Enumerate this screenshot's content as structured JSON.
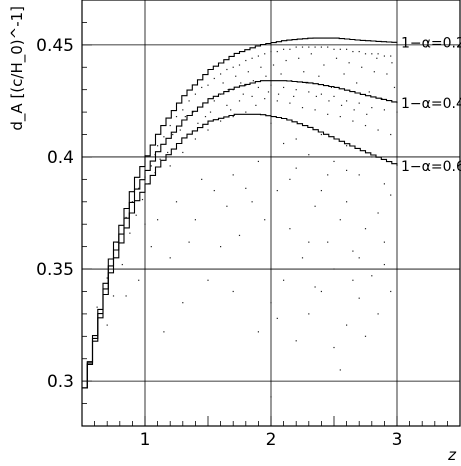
{
  "chart_data": {
    "type": "scatter",
    "title": "",
    "xlabel": "z",
    "ylabel": "d_A [(c/H_0)^-1]",
    "xlim": [
      0.5,
      3.5
    ],
    "ylim": [
      0.28,
      0.47
    ],
    "grid": true,
    "x_ticks": [
      {
        "value": 1,
        "label": "1"
      },
      {
        "value": 2,
        "label": "2"
      },
      {
        "value": 3,
        "label": "3"
      }
    ],
    "y_ticks": [
      {
        "value": 0.3,
        "label": "0.3"
      },
      {
        "value": 0.35,
        "label": "0.35"
      },
      {
        "value": 0.4,
        "label": "0.4"
      },
      {
        "value": 0.45,
        "label": "0.45"
      }
    ],
    "series": [
      {
        "name": "1−α=0.2",
        "x": [
          0.5,
          0.7,
          0.9,
          1.1,
          1.3,
          1.5,
          1.7,
          1.9,
          2.1,
          2.3,
          2.5,
          2.7,
          3.0
        ],
        "y": [
          0.297,
          0.353,
          0.389,
          0.412,
          0.428,
          0.439,
          0.446,
          0.45,
          0.452,
          0.453,
          0.453,
          0.452,
          0.451
        ]
      },
      {
        "name": "1−α=0.4",
        "x": [
          0.5,
          0.7,
          0.9,
          1.1,
          1.3,
          1.5,
          1.7,
          1.9,
          2.1,
          2.3,
          2.5,
          2.7,
          3.0
        ],
        "y": [
          0.297,
          0.35,
          0.384,
          0.404,
          0.417,
          0.426,
          0.431,
          0.434,
          0.434,
          0.433,
          0.431,
          0.428,
          0.424
        ]
      },
      {
        "name": "1−α=0.6",
        "x": [
          0.5,
          0.7,
          0.9,
          1.1,
          1.3,
          1.5,
          1.7,
          1.9,
          2.1,
          2.3,
          2.5,
          2.7,
          3.0
        ],
        "y": [
          0.297,
          0.347,
          0.379,
          0.397,
          0.409,
          0.416,
          0.419,
          0.419,
          0.417,
          0.413,
          0.408,
          0.403,
          0.396
        ]
      }
    ],
    "scatter_points": [
      [
        0.62,
        0.333
      ],
      [
        0.7,
        0.346
      ],
      [
        0.78,
        0.362
      ],
      [
        0.85,
        0.373
      ],
      [
        0.9,
        0.38
      ],
      [
        0.95,
        0.386
      ],
      [
        1.0,
        0.391
      ],
      [
        1.05,
        0.396
      ],
      [
        0.75,
        0.338
      ],
      [
        0.82,
        0.352
      ],
      [
        0.88,
        0.366
      ],
      [
        0.93,
        0.374
      ],
      [
        0.98,
        0.381
      ],
      [
        1.03,
        0.388
      ],
      [
        1.08,
        0.393
      ],
      [
        1.1,
        0.405
      ],
      [
        1.15,
        0.409
      ],
      [
        1.2,
        0.414
      ],
      [
        1.25,
        0.418
      ],
      [
        1.3,
        0.421
      ],
      [
        1.35,
        0.425
      ],
      [
        1.4,
        0.428
      ],
      [
        1.45,
        0.431
      ],
      [
        1.2,
        0.396
      ],
      [
        1.3,
        0.402
      ],
      [
        1.4,
        0.408
      ],
      [
        1.5,
        0.412
      ],
      [
        1.6,
        0.416
      ],
      [
        1.7,
        0.418
      ],
      [
        1.8,
        0.42
      ],
      [
        1.5,
        0.432
      ],
      [
        1.55,
        0.435
      ],
      [
        1.6,
        0.437
      ],
      [
        1.65,
        0.439
      ],
      [
        1.7,
        0.44
      ],
      [
        1.75,
        0.441
      ],
      [
        1.8,
        0.443
      ],
      [
        1.85,
        0.444
      ],
      [
        1.9,
        0.445
      ],
      [
        1.95,
        0.446
      ],
      [
        2.0,
        0.447
      ],
      [
        2.05,
        0.447
      ],
      [
        2.1,
        0.448
      ],
      [
        2.15,
        0.448
      ],
      [
        2.2,
        0.449
      ],
      [
        2.25,
        0.449
      ],
      [
        2.3,
        0.449
      ],
      [
        2.35,
        0.449
      ],
      [
        2.4,
        0.449
      ],
      [
        2.45,
        0.449
      ],
      [
        2.5,
        0.448
      ],
      [
        2.55,
        0.448
      ],
      [
        2.6,
        0.448
      ],
      [
        2.65,
        0.447
      ],
      [
        2.7,
        0.447
      ],
      [
        2.75,
        0.446
      ],
      [
        2.8,
        0.446
      ],
      [
        2.85,
        0.446
      ],
      [
        2.9,
        0.445
      ],
      [
        2.95,
        0.445
      ],
      [
        1.6,
        0.428
      ],
      [
        1.7,
        0.43
      ],
      [
        1.8,
        0.432
      ],
      [
        1.9,
        0.431
      ],
      [
        2.0,
        0.432
      ],
      [
        2.1,
        0.431
      ],
      [
        2.2,
        0.43
      ],
      [
        2.3,
        0.429
      ],
      [
        2.4,
        0.428
      ],
      [
        2.5,
        0.427
      ],
      [
        2.6,
        0.425
      ],
      [
        2.7,
        0.424
      ],
      [
        2.8,
        0.422
      ],
      [
        2.9,
        0.421
      ],
      [
        3.0,
        0.42
      ],
      [
        1.65,
        0.423
      ],
      [
        1.75,
        0.425
      ],
      [
        1.85,
        0.427
      ],
      [
        1.95,
        0.426
      ],
      [
        2.05,
        0.425
      ],
      [
        2.15,
        0.424
      ],
      [
        2.25,
        0.422
      ],
      [
        2.35,
        0.421
      ],
      [
        2.45,
        0.419
      ],
      [
        2.55,
        0.418
      ],
      [
        2.65,
        0.416
      ],
      [
        2.75,
        0.414
      ],
      [
        2.85,
        0.412
      ],
      [
        2.95,
        0.41
      ],
      [
        1.55,
        0.425
      ],
      [
        1.62,
        0.433
      ],
      [
        1.68,
        0.421
      ],
      [
        1.72,
        0.436
      ],
      [
        1.78,
        0.428
      ],
      [
        1.82,
        0.438
      ],
      [
        1.88,
        0.423
      ],
      [
        1.92,
        0.44
      ],
      [
        1.98,
        0.429
      ],
      [
        2.02,
        0.441
      ],
      [
        2.08,
        0.437
      ],
      [
        2.12,
        0.443
      ],
      [
        2.18,
        0.427
      ],
      [
        2.22,
        0.444
      ],
      [
        2.28,
        0.433
      ],
      [
        2.32,
        0.446
      ],
      [
        2.38,
        0.436
      ],
      [
        2.42,
        0.441
      ],
      [
        2.48,
        0.431
      ],
      [
        2.52,
        0.444
      ],
      [
        2.58,
        0.437
      ],
      [
        2.62,
        0.442
      ],
      [
        2.68,
        0.433
      ],
      [
        2.72,
        0.44
      ],
      [
        2.78,
        0.429
      ],
      [
        2.82,
        0.438
      ],
      [
        2.88,
        0.426
      ],
      [
        2.92,
        0.437
      ],
      [
        2.98,
        0.431
      ],
      [
        2.96,
        0.442
      ],
      [
        2.84,
        0.444
      ],
      [
        2.76,
        0.419
      ],
      [
        2.66,
        0.421
      ],
      [
        2.56,
        0.423
      ],
      [
        2.46,
        0.425
      ],
      [
        2.36,
        0.427
      ],
      [
        2.26,
        0.438
      ],
      [
        2.16,
        0.434
      ],
      [
        2.06,
        0.428
      ],
      [
        1.96,
        0.436
      ],
      [
        1.86,
        0.434
      ],
      [
        1.76,
        0.433
      ],
      [
        1.66,
        0.43
      ],
      [
        1.58,
        0.427
      ],
      [
        1.52,
        0.42
      ],
      [
        1.48,
        0.418
      ],
      [
        1.42,
        0.415
      ],
      [
        1.38,
        0.42
      ],
      [
        1.32,
        0.418
      ],
      [
        1.28,
        0.412
      ],
      [
        1.22,
        0.41
      ],
      [
        1.18,
        0.402
      ],
      [
        1.12,
        0.399
      ],
      [
        1.08,
        0.401
      ],
      [
        2.0,
        0.415
      ],
      [
        2.2,
        0.408
      ],
      [
        2.4,
        0.41
      ],
      [
        2.6,
        0.405
      ],
      [
        2.8,
        0.4
      ],
      [
        2.5,
        0.398
      ],
      [
        2.3,
        0.401
      ],
      [
        2.1,
        0.406
      ],
      [
        2.7,
        0.392
      ],
      [
        2.9,
        0.388
      ],
      [
        2.2,
        0.395
      ],
      [
        2.4,
        0.385
      ],
      [
        1.9,
        0.398
      ],
      [
        1.7,
        0.392
      ],
      [
        2.6,
        0.38
      ],
      [
        2.85,
        0.375
      ],
      [
        2.05,
        0.385
      ],
      [
        2.35,
        0.378
      ],
      [
        2.55,
        0.372
      ],
      [
        2.75,
        0.368
      ],
      [
        2.95,
        0.383
      ],
      [
        1.95,
        0.372
      ],
      [
        2.15,
        0.368
      ],
      [
        2.45,
        0.362
      ],
      [
        2.65,
        0.358
      ],
      [
        2.9,
        0.362
      ],
      [
        1.85,
        0.38
      ],
      [
        2.25,
        0.355
      ],
      [
        2.5,
        0.35
      ],
      [
        2.8,
        0.347
      ],
      [
        1.75,
        0.365
      ],
      [
        2.1,
        0.345
      ],
      [
        2.4,
        0.34
      ],
      [
        2.7,
        0.337
      ],
      [
        2.95,
        0.34
      ],
      [
        1.6,
        0.36
      ],
      [
        2.0,
        0.335
      ],
      [
        2.3,
        0.33
      ],
      [
        2.6,
        0.325
      ],
      [
        2.85,
        0.33
      ],
      [
        1.5,
        0.345
      ],
      [
        1.9,
        0.322
      ],
      [
        2.2,
        0.318
      ],
      [
        2.5,
        0.315
      ],
      [
        2.75,
        0.32
      ],
      [
        1.3,
        0.335
      ],
      [
        1.7,
        0.34
      ],
      [
        2.05,
        0.328
      ],
      [
        2.35,
        0.342
      ],
      [
        2.65,
        0.345
      ],
      [
        2.9,
        0.352
      ],
      [
        1.4,
        0.372
      ],
      [
        1.25,
        0.38
      ],
      [
        1.45,
        0.39
      ],
      [
        1.55,
        0.385
      ],
      [
        1.65,
        0.378
      ],
      [
        1.8,
        0.386
      ],
      [
        2.45,
        0.392
      ],
      [
        2.6,
        0.394
      ],
      [
        2.15,
        0.39
      ],
      [
        1.35,
        0.362
      ],
      [
        1.2,
        0.355
      ],
      [
        1.1,
        0.372
      ],
      [
        1.05,
        0.36
      ],
      [
        0.95,
        0.345
      ],
      [
        0.85,
        0.338
      ],
      [
        2.55,
        0.305
      ],
      [
        2.3,
        0.362
      ],
      [
        1.15,
        0.322
      ],
      [
        2.0,
        0.293
      ],
      [
        2.7,
        0.355
      ],
      [
        1.0,
        0.37
      ],
      [
        0.7,
        0.325
      ]
    ]
  }
}
